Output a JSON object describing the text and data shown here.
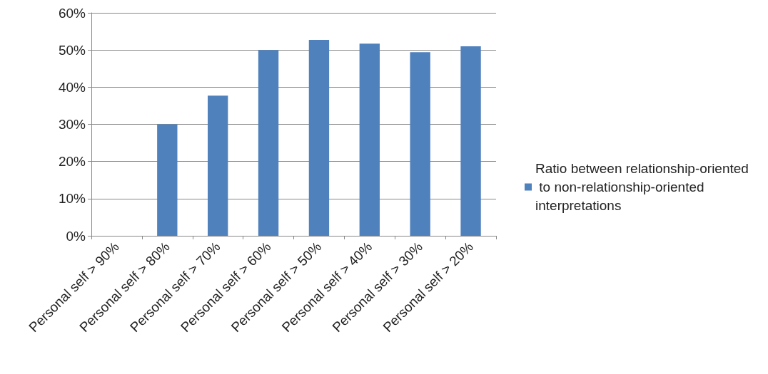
{
  "chart_data": {
    "type": "bar",
    "categories": [
      "Personal self > 90%",
      "Personal self > 80%",
      "Personal self > 70%",
      "Personal self > 60%",
      "Personal self > 50%",
      "Personal self > 40%",
      "Personal self > 30%",
      "Personal self > 20%"
    ],
    "series": [
      {
        "name": "Ratio between relationship-oriented to non-relationship-oriented interpretations",
        "color": "#4f81bd",
        "values": [
          null,
          30,
          37.7,
          50,
          52.7,
          51.7,
          49.4,
          51
        ]
      }
    ],
    "ylim": [
      0,
      60
    ],
    "yticks": [
      {
        "value": 0,
        "label": "0%"
      },
      {
        "value": 10,
        "label": "10%"
      },
      {
        "value": 20,
        "label": "20%"
      },
      {
        "value": 30,
        "label": "30%"
      },
      {
        "value": 40,
        "label": "40%"
      },
      {
        "value": 50,
        "label": "50%"
      },
      {
        "value": 60,
        "label": "60%"
      }
    ],
    "grid": "y",
    "legend": "right"
  }
}
